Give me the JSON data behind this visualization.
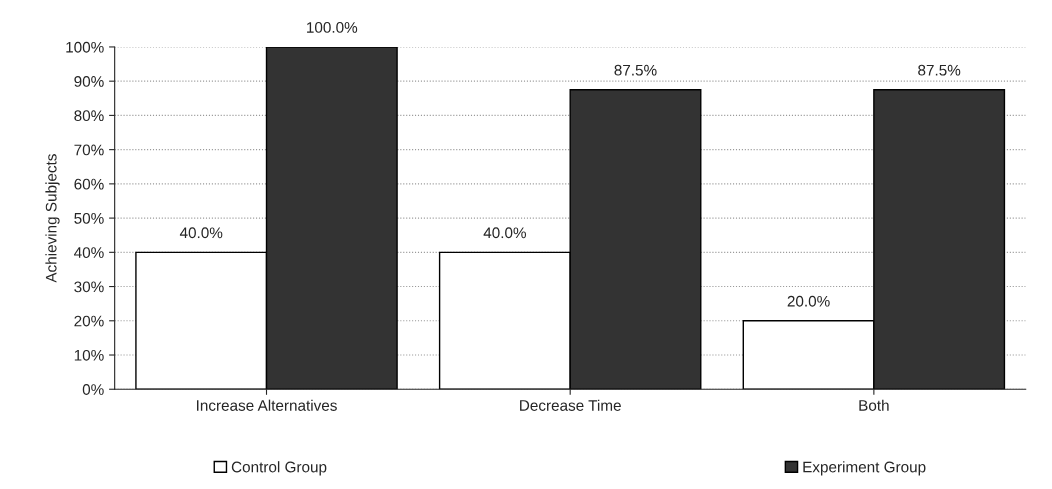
{
  "chart_data": {
    "type": "bar",
    "ylabel": "Achieving Subjects",
    "categories": [
      "Increase Alternatives",
      "Decrease Time",
      "Both"
    ],
    "series": [
      {
        "name": "Control Group",
        "color": "#ffffff",
        "values": [
          40,
          40,
          20
        ],
        "value_labels": [
          "40.0%",
          "40.0%",
          "20.0%"
        ]
      },
      {
        "name": "Experiment Group",
        "color": "#333333",
        "values": [
          100,
          87.5,
          87.5
        ],
        "value_labels": [
          "100.0%",
          "87.5%",
          "87.5%"
        ]
      }
    ],
    "ylim": [
      0,
      100
    ],
    "yticks": [
      {
        "value": 0,
        "label": "0%"
      },
      {
        "value": 10,
        "label": "10%"
      },
      {
        "value": 20,
        "label": "20%"
      },
      {
        "value": 30,
        "label": "30%"
      },
      {
        "value": 40,
        "label": "40%"
      },
      {
        "value": 50,
        "label": "50%"
      },
      {
        "value": 60,
        "label": "60%"
      },
      {
        "value": 70,
        "label": "70%"
      },
      {
        "value": 80,
        "label": "80%"
      },
      {
        "value": 90,
        "label": "90%"
      },
      {
        "value": 100,
        "label": "100%"
      }
    ],
    "grid": "y",
    "legend": "bottom"
  }
}
